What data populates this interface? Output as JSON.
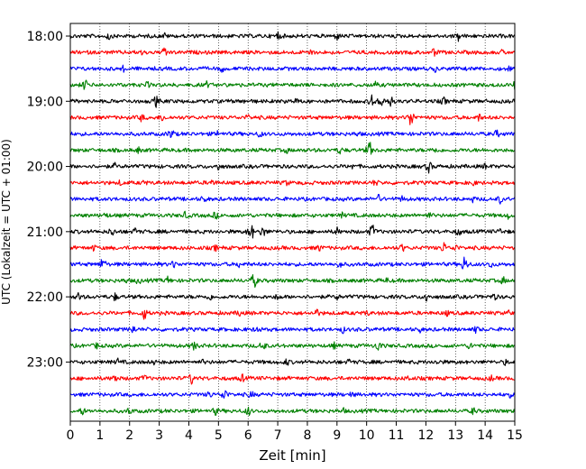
{
  "chart_data": {
    "type": "line",
    "title": "",
    "xlabel": "Zeit  [min]",
    "ylabel": "UTC (Lokalzeit = UTC + 01:00)",
    "xlim": [
      0,
      15
    ],
    "x_ticks": [
      0,
      1,
      2,
      3,
      4,
      5,
      6,
      7,
      8,
      9,
      10,
      11,
      12,
      13,
      14,
      15
    ],
    "y_tick_labels": [
      "18:00",
      "19:00",
      "20:00",
      "21:00",
      "22:00",
      "23:00"
    ],
    "grid": "vertical dotted",
    "trace_interval_min": 15,
    "trace_colors": [
      "#000000",
      "#ff0000",
      "#0000ff",
      "#008000"
    ],
    "series": [
      {
        "start": "18:00",
        "color": "#000000",
        "events": [
          [
            1.3,
            6
          ],
          [
            3.2,
            5
          ],
          [
            7.0,
            7
          ],
          [
            9.0,
            6
          ],
          [
            13.1,
            7
          ]
        ]
      },
      {
        "start": "18:15",
        "color": "#ff0000",
        "events": [
          [
            2.4,
            5
          ],
          [
            3.2,
            8
          ],
          [
            8.1,
            6
          ],
          [
            12.3,
            7
          ],
          [
            14.6,
            5
          ]
        ]
      },
      {
        "start": "18:30",
        "color": "#0000ff",
        "events": [
          [
            1.8,
            5
          ],
          [
            5.1,
            6
          ],
          [
            12.3,
            5
          ],
          [
            14.8,
            5
          ]
        ]
      },
      {
        "start": "18:45",
        "color": "#008000",
        "events": [
          [
            0.5,
            8
          ],
          [
            2.6,
            5
          ],
          [
            4.6,
            5
          ],
          [
            10.3,
            5
          ],
          [
            15.0,
            6
          ]
        ]
      },
      {
        "start": "19:00",
        "color": "#000000",
        "events": [
          [
            2.9,
            8
          ],
          [
            5.8,
            5
          ],
          [
            7.6,
            5
          ],
          [
            10.2,
            10
          ],
          [
            10.5,
            9
          ],
          [
            10.8,
            8
          ],
          [
            12.6,
            6
          ]
        ]
      },
      {
        "start": "19:15",
        "color": "#ff0000",
        "events": [
          [
            2.4,
            6
          ],
          [
            3.1,
            6
          ],
          [
            6.0,
            5
          ],
          [
            11.5,
            12
          ],
          [
            13.8,
            6
          ]
        ]
      },
      {
        "start": "19:30",
        "color": "#0000ff",
        "events": [
          [
            3.4,
            8
          ],
          [
            5.0,
            6
          ],
          [
            6.4,
            6
          ],
          [
            9.7,
            5
          ],
          [
            14.4,
            6
          ]
        ]
      },
      {
        "start": "19:45",
        "color": "#008000",
        "events": [
          [
            2.3,
            5
          ],
          [
            7.3,
            5
          ],
          [
            9.1,
            6
          ],
          [
            10.1,
            11
          ],
          [
            12.3,
            6
          ]
        ]
      },
      {
        "start": "20:00",
        "color": "#000000",
        "events": [
          [
            1.5,
            5
          ],
          [
            5.0,
            6
          ],
          [
            9.5,
            5
          ],
          [
            12.1,
            8
          ],
          [
            14.0,
            5
          ]
        ]
      },
      {
        "start": "20:15",
        "color": "#ff0000",
        "events": [
          [
            1.7,
            5
          ],
          [
            2.5,
            5
          ],
          [
            4.8,
            6
          ],
          [
            7.3,
            5
          ],
          [
            10.3,
            6
          ],
          [
            13.6,
            5
          ]
        ]
      },
      {
        "start": "20:30",
        "color": "#0000ff",
        "events": [
          [
            4.5,
            6
          ],
          [
            10.4,
            6
          ],
          [
            11.2,
            5
          ],
          [
            13.6,
            5
          ],
          [
            14.5,
            6
          ]
        ]
      },
      {
        "start": "20:45",
        "color": "#008000",
        "events": [
          [
            1.2,
            5
          ],
          [
            3.9,
            6
          ],
          [
            4.9,
            6
          ],
          [
            9.2,
            5
          ],
          [
            12.1,
            5
          ],
          [
            14.8,
            6
          ]
        ]
      },
      {
        "start": "21:00",
        "color": "#000000",
        "events": [
          [
            1.4,
            7
          ],
          [
            2.2,
            6
          ],
          [
            6.1,
            12
          ],
          [
            6.5,
            8
          ],
          [
            9.0,
            6
          ],
          [
            10.2,
            10
          ],
          [
            13.1,
            7
          ],
          [
            14.5,
            5
          ]
        ]
      },
      {
        "start": "21:15",
        "color": "#ff0000",
        "events": [
          [
            0.8,
            5
          ],
          [
            4.9,
            5
          ],
          [
            8.4,
            6
          ],
          [
            11.2,
            6
          ],
          [
            12.6,
            8
          ],
          [
            13.0,
            6
          ]
        ]
      },
      {
        "start": "21:30",
        "color": "#0000ff",
        "events": [
          [
            1.1,
            9
          ],
          [
            3.5,
            6
          ],
          [
            5.7,
            5
          ],
          [
            9.1,
            6
          ],
          [
            13.3,
            11
          ],
          [
            14.2,
            6
          ]
        ]
      },
      {
        "start": "21:45",
        "color": "#008000",
        "events": [
          [
            1.9,
            5
          ],
          [
            2.3,
            6
          ],
          [
            3.3,
            6
          ],
          [
            6.2,
            10
          ],
          [
            10.7,
            5
          ],
          [
            14.6,
            6
          ]
        ]
      },
      {
        "start": "22:00",
        "color": "#000000",
        "events": [
          [
            0.3,
            7
          ],
          [
            1.5,
            6
          ],
          [
            4.7,
            6
          ],
          [
            7.0,
            6
          ],
          [
            9.0,
            5
          ],
          [
            12.0,
            8
          ],
          [
            14.3,
            6
          ]
        ]
      },
      {
        "start": "22:15",
        "color": "#ff0000",
        "events": [
          [
            2.5,
            9
          ],
          [
            5.7,
            6
          ],
          [
            8.3,
            7
          ],
          [
            10.0,
            5
          ],
          [
            12.7,
            5
          ],
          [
            14.8,
            5
          ]
        ]
      },
      {
        "start": "22:30",
        "color": "#0000ff",
        "events": [
          [
            2.1,
            7
          ],
          [
            6.3,
            6
          ],
          [
            9.2,
            5
          ],
          [
            11.8,
            5
          ],
          [
            13.7,
            6
          ]
        ]
      },
      {
        "start": "22:45",
        "color": "#008000",
        "events": [
          [
            0.9,
            5
          ],
          [
            4.2,
            7
          ],
          [
            6.5,
            8
          ],
          [
            8.9,
            5
          ],
          [
            10.4,
            8
          ],
          [
            13.5,
            6
          ]
        ]
      },
      {
        "start": "23:00",
        "color": "#000000",
        "events": [
          [
            1.6,
            5
          ],
          [
            2.8,
            5
          ],
          [
            4.5,
            5
          ],
          [
            7.3,
            6
          ],
          [
            9.4,
            5
          ],
          [
            12.4,
            5
          ],
          [
            14.7,
            5
          ]
        ]
      },
      {
        "start": "23:15",
        "color": "#ff0000",
        "events": [
          [
            1.5,
            7
          ],
          [
            2.5,
            6
          ],
          [
            4.1,
            8
          ],
          [
            5.8,
            6
          ],
          [
            11.4,
            5
          ],
          [
            14.2,
            5
          ]
        ]
      },
      {
        "start": "23:30",
        "color": "#0000ff",
        "events": [
          [
            4.7,
            6
          ],
          [
            5.2,
            9
          ],
          [
            6.1,
            6
          ],
          [
            9.5,
            5
          ],
          [
            14.8,
            6
          ]
        ]
      },
      {
        "start": "23:45",
        "color": "#008000",
        "events": [
          [
            0.4,
            6
          ],
          [
            2.0,
            6
          ],
          [
            4.9,
            6
          ],
          [
            6.0,
            7
          ],
          [
            9.2,
            5
          ],
          [
            13.6,
            6
          ]
        ]
      }
    ]
  }
}
